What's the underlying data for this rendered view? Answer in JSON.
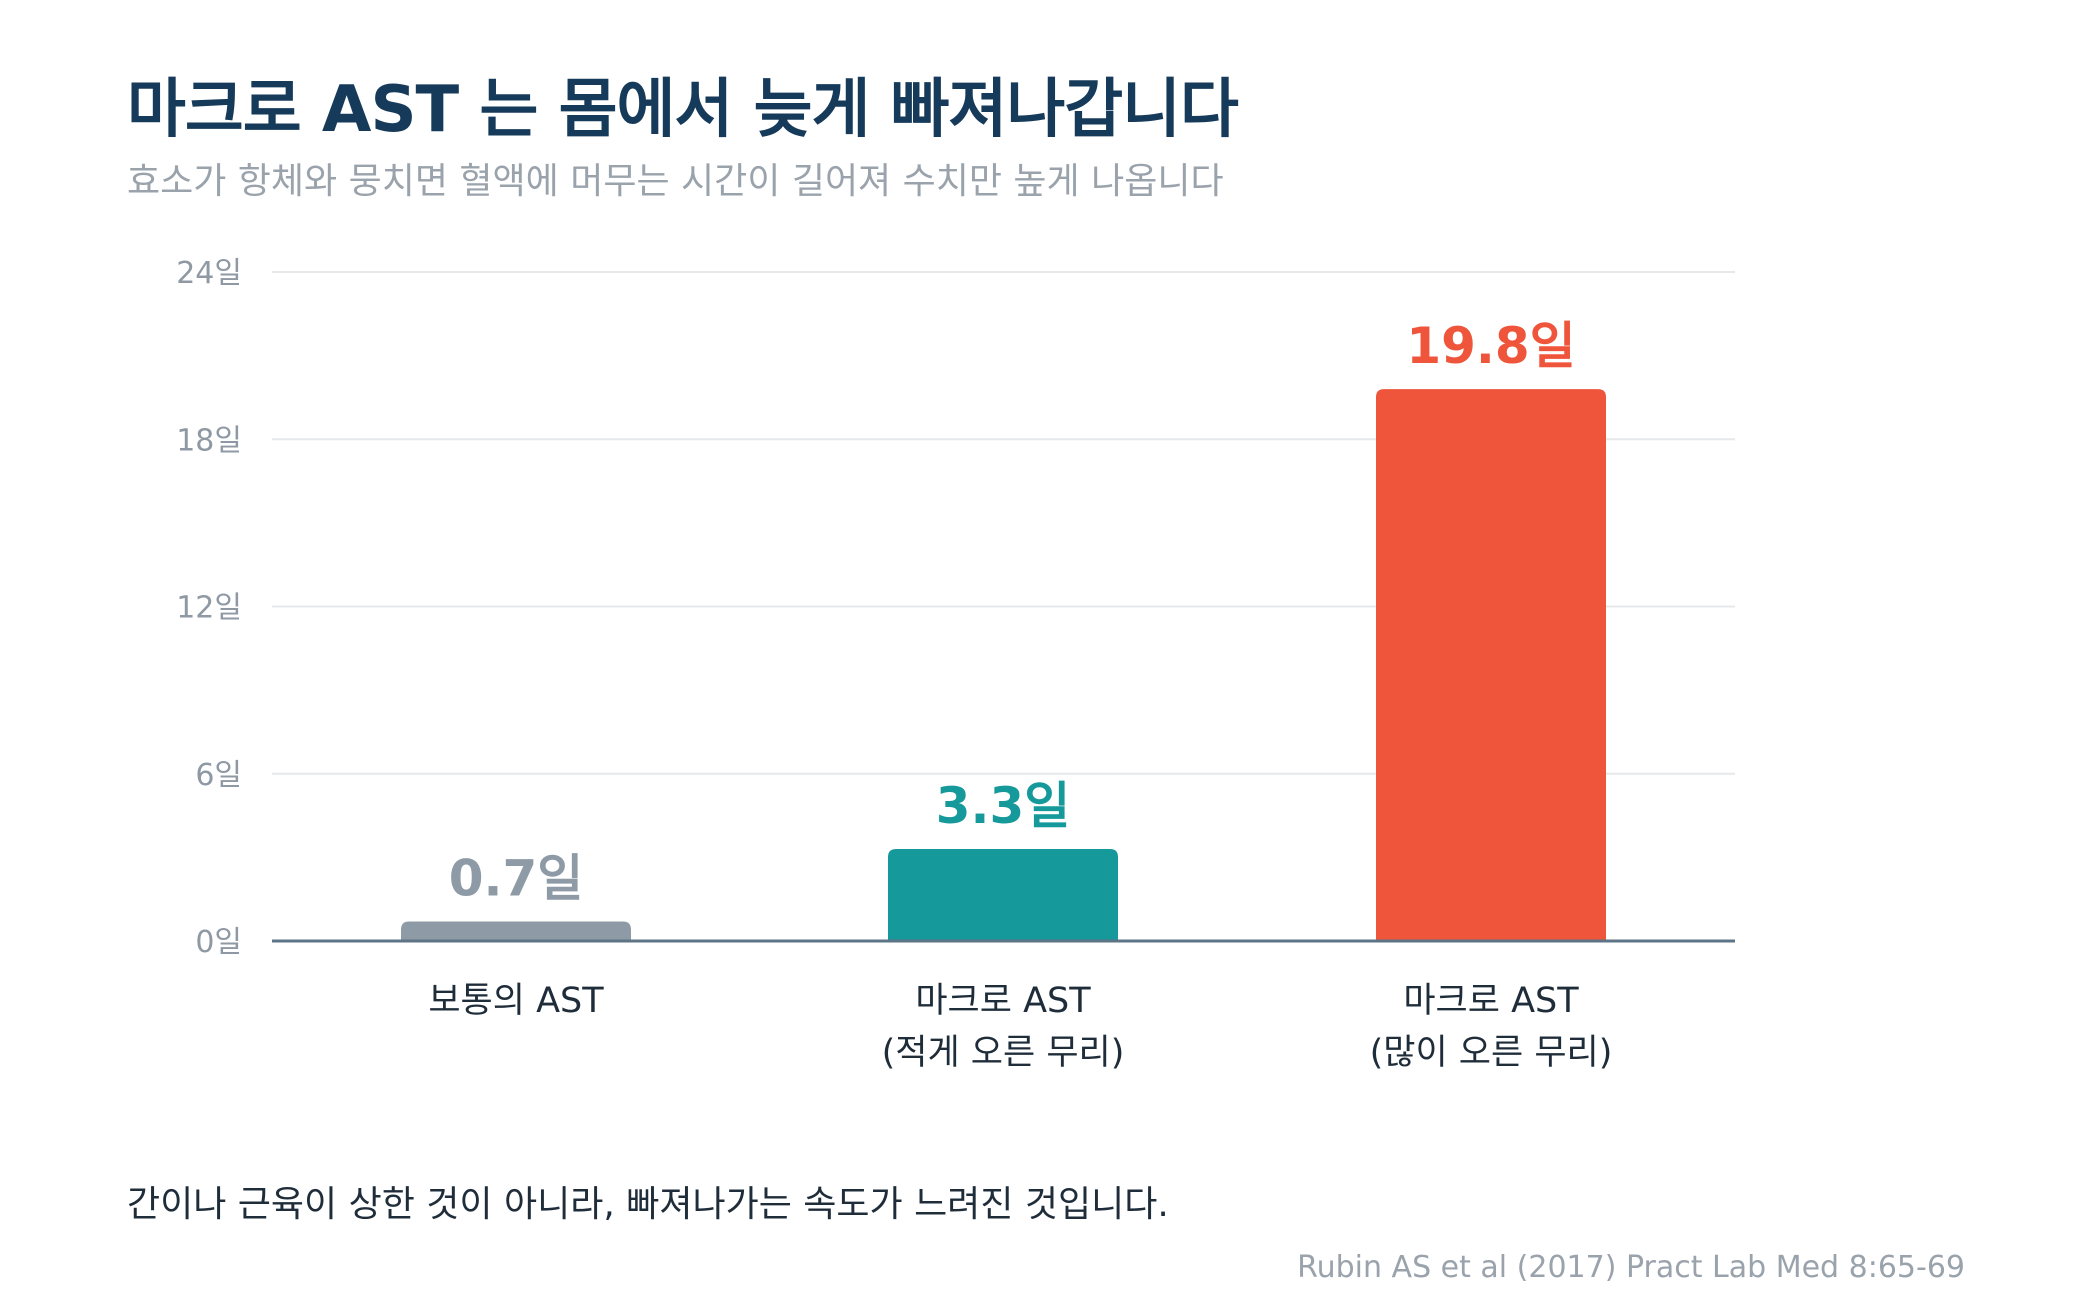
{
  "title": "마크로 AST 는 몸에서 늦게 빠져나갑니다",
  "subtitle": "효소가 항체와 뭉치면 혈액에 머무는 시간이 길어져 수치만 높게 나옵니다",
  "takeaway": "간이나 근육이 상한 것이 아니라, 빠져나가는 속도가 느려진 것입니다.",
  "source": "Rubin AS et al (2017) Pract Lab Med 8:65-69",
  "colors": {
    "title": "#163a59",
    "normal": "#8e9ba7",
    "mild": "#16999a",
    "severe": "#ef553b",
    "grid": "#e6e9ec",
    "axis": "#5d7386"
  },
  "chart_data": {
    "type": "bar",
    "title": "마크로 AST 는 몸에서 늦게 빠져나갑니다",
    "ylim": [
      0,
      24
    ],
    "yticks": [
      0,
      6,
      12,
      18,
      24
    ],
    "y_unit": "일",
    "grid": true,
    "categories": [
      [
        "보통의 AST"
      ],
      [
        "마크로 AST",
        "(적게 오른 무리)"
      ],
      [
        "마크로 AST",
        "(많이 오른 무리)"
      ]
    ],
    "values": [
      0.7,
      3.3,
      19.8
    ],
    "value_labels": [
      "0.7일",
      "3.3일",
      "19.8일"
    ],
    "bar_colors": [
      "#8e9ba7",
      "#16999a",
      "#ef553b"
    ]
  }
}
